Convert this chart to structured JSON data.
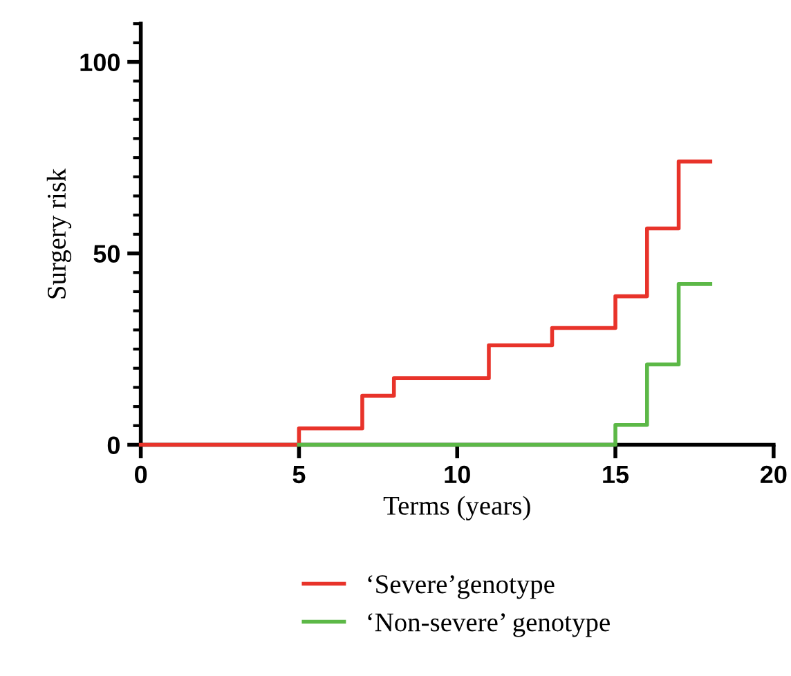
{
  "chart_data": {
    "type": "step",
    "xlabel": "Terms (years)",
    "ylabel": "Surgery risk",
    "series": [
      {
        "name": "‘Severe’genotype",
        "color": "#e8332a",
        "x": [
          0,
          5,
          7,
          8,
          11,
          13,
          15,
          16,
          17,
          18
        ],
        "values": [
          0,
          4.3,
          12.8,
          17.4,
          26,
          30.5,
          38.8,
          56.5,
          74,
          74
        ]
      },
      {
        "name": "‘Non-severe’ genotype",
        "color": "#5cb847",
        "x": [
          5,
          15,
          16,
          17,
          18
        ],
        "values": [
          0,
          5.2,
          21,
          42,
          42
        ]
      }
    ],
    "xlim": [
      0,
      20
    ],
    "xticks": [
      0,
      5,
      10,
      15,
      20
    ],
    "ylim": [
      0,
      110
    ],
    "yticks": [
      0,
      {
        "value": 5,
        "label": null
      },
      {
        "value": 10,
        "label": null
      },
      {
        "value": 15,
        "label": null
      },
      {
        "value": 20,
        "label": null
      },
      {
        "value": 25,
        "label": null
      },
      {
        "value": 30,
        "label": null
      },
      {
        "value": 35,
        "label": null
      },
      {
        "value": 40,
        "label": null
      },
      {
        "value": 45,
        "label": null
      },
      50,
      {
        "value": 55,
        "label": null
      },
      {
        "value": 60,
        "label": null
      },
      {
        "value": 65,
        "label": null
      },
      {
        "value": 70,
        "label": null
      },
      {
        "value": 75,
        "label": null
      },
      {
        "value": 80,
        "label": null
      },
      {
        "value": 85,
        "label": null
      },
      {
        "value": 90,
        "label": null
      },
      {
        "value": 95,
        "label": null
      },
      100,
      {
        "value": 105,
        "label": null
      },
      {
        "value": 110,
        "label": null
      }
    ],
    "grid": false,
    "legend": "bottom",
    "line_style": "solid"
  }
}
